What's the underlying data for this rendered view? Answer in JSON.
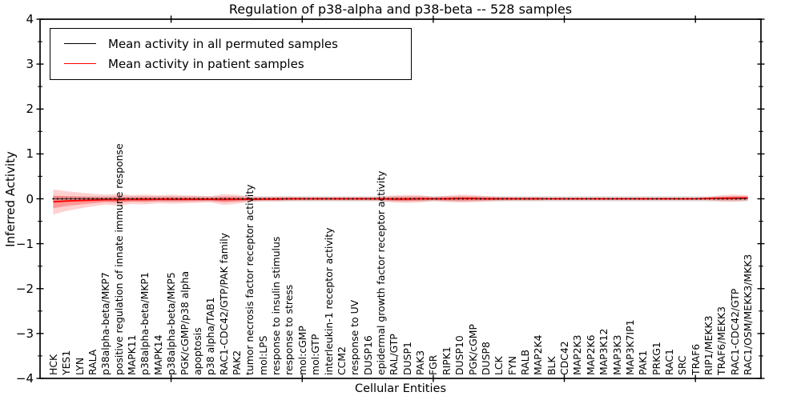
{
  "chart_data": {
    "type": "line",
    "title": "Regulation of p38-alpha and p38-beta -- 528 samples",
    "xlabel": "Cellular Entities",
    "ylabel": "Inferred Activity",
    "ylim": [
      -4,
      4
    ],
    "yticks": [
      -4,
      -3,
      -2,
      -1,
      0,
      1,
      2,
      3,
      4
    ],
    "y_minor_tick_step": 0.5,
    "xtick_positions": [
      10,
      20,
      30,
      40,
      50
    ],
    "grid": false,
    "legend_position": "upper left",
    "categories": [
      "HCK",
      "YES1",
      "LYN",
      "RALA",
      "p38alpha-beta/MKP7",
      "positive regulation of innate immune response",
      "MAPK11",
      "p38alpha-beta/MKP1",
      "MAPK14",
      "p38alpha-beta/MKP5",
      "PGK/cGMP/p38 alpha",
      "apoptosis",
      "p38 alpha/TAB1",
      "RAC1-CDC42/GTP/PAK family",
      "PAK2",
      "tumor necrosis factor receptor activity",
      "mol:LPS",
      "response to insulin stimulus",
      "response to stress",
      "mol:cGMP",
      "mol:GTP",
      "interleukin-1 receptor activity",
      "CCM2",
      "response to UV",
      "DUSP16",
      "epidermal growth factor receptor activity",
      "RAL/GTP",
      "DUSP1",
      "PAK3",
      "FGR",
      "RIPK1",
      "DUSP10",
      "PGK/cGMP",
      "DUSP8",
      "LCK",
      "FYN",
      "RALB",
      "MAP2K4",
      "BLK",
      "CDC42",
      "MAP2K3",
      "MAP2K6",
      "MAP3K12",
      "MAP3K3",
      "MAP3K7IP1",
      "PAK1",
      "PRKG1",
      "RAC1",
      "SRC",
      "TRAF6",
      "RIP1/MEKK3",
      "TRAF6/MEKK3",
      "RAC1-CDC42/GTP",
      "RAC1/OSM/MEKK3/MKK3"
    ],
    "series": [
      {
        "name": "Mean activity in all permuted samples",
        "color": "#000000",
        "line_style": "dotted",
        "constant": 0
      },
      {
        "name": "Mean activity in patient samples",
        "color": "#ff0000",
        "line_style": "solid",
        "values": [
          -0.07,
          -0.05,
          -0.04,
          -0.03,
          -0.02,
          -0.02,
          -0.015,
          -0.015,
          -0.01,
          -0.01,
          -0.01,
          -0.01,
          -0.01,
          -0.015,
          -0.01,
          -0.01,
          -0.005,
          -0.005,
          0,
          0,
          0,
          0,
          0,
          0,
          0,
          0,
          -0.005,
          -0.005,
          0,
          0,
          0,
          0.005,
          0.005,
          0,
          0,
          0,
          0,
          0,
          0,
          0,
          0,
          0,
          0,
          0,
          0,
          0,
          0,
          0,
          0,
          0,
          0.005,
          0.01,
          0.015,
          0.02
        ]
      }
    ],
    "bands": [
      {
        "name": "permuted-samples-spread",
        "color": "rgba(0,0,0,0.13)",
        "halfwidth_constant": 0.055
      },
      {
        "name": "patient-samples-spread",
        "color": "rgba(255,0,0,0.18)",
        "inner_color": "rgba(255,0,0,0.28)",
        "halfwidths": [
          0.28,
          0.22,
          0.18,
          0.14,
          0.11,
          0.13,
          0.1,
          0.11,
          0.09,
          0.1,
          0.09,
          0.08,
          0.07,
          0.12,
          0.1,
          0.06,
          0.05,
          0.05,
          0.05,
          0.04,
          0.04,
          0.04,
          0.04,
          0.04,
          0.04,
          0.05,
          0.08,
          0.09,
          0.08,
          0.05,
          0.07,
          0.09,
          0.08,
          0.06,
          0.05,
          0.04,
          0.04,
          0.04,
          0.03,
          0.03,
          0.03,
          0.03,
          0.03,
          0.03,
          0.03,
          0.03,
          0.03,
          0.03,
          0.03,
          0.03,
          0.04,
          0.07,
          0.08,
          0.06
        ]
      }
    ]
  }
}
